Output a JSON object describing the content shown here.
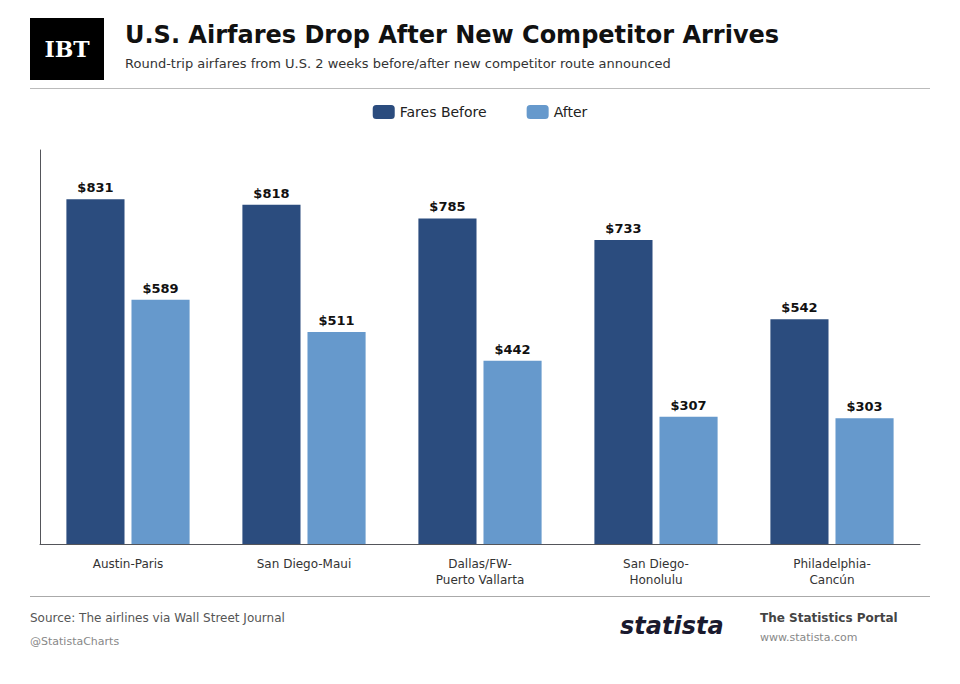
{
  "chart_data": {
    "type": "bar",
    "title": "U.S. Airfares Drop After New Competitor Arrives",
    "subtitle": "Round-trip airfares from U.S. 2 weeks before/after new competitor route announced",
    "categories": [
      "Austin-Paris",
      "San Diego-Maui",
      "Dallas/FW-\nPuerto Vallarta",
      "San Diego-\nHonolulu",
      "Philadelphia-\nCancún"
    ],
    "series": [
      {
        "name": "Fares Before",
        "color": "#2B4C7E",
        "values": [
          831,
          818,
          785,
          733,
          542
        ],
        "value_labels": [
          "$831",
          "$818",
          "$785",
          "$733",
          "$542"
        ]
      },
      {
        "name": "After",
        "color": "#6699CC",
        "values": [
          589,
          511,
          442,
          307,
          303
        ],
        "value_labels": [
          "$589",
          "$511",
          "$442",
          "$307",
          "$303"
        ]
      }
    ],
    "ylim": [
      0,
      950
    ],
    "data_labels": true,
    "tick_labels": "x",
    "grid": false,
    "legend": "top",
    "annotations": [
      "IBT",
      "Source: The airlines via Wall Street Journal",
      "@StatistaCharts",
      "statista",
      "The Statistics Portal",
      "www.statista.com"
    ]
  }
}
